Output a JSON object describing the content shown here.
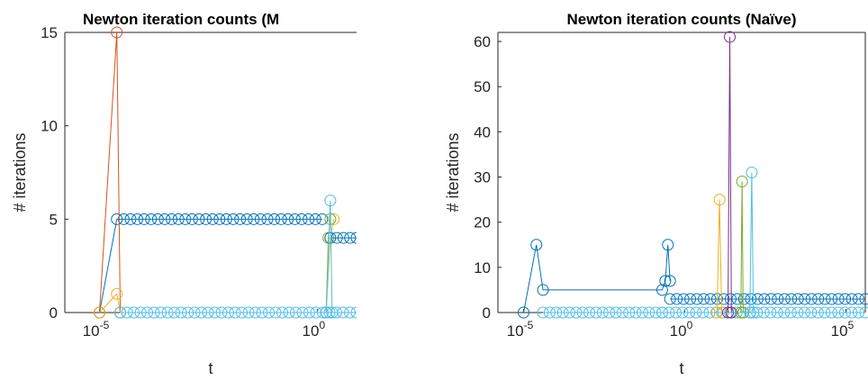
{
  "chart_data": [
    {
      "type": "line",
      "title": "Newton iteration counts (M",
      "xlabel": "t",
      "ylabel": "# iterations",
      "x_scale": "log",
      "xlim": [
        1.6e-06,
        8
      ],
      "ylim": [
        0,
        15
      ],
      "x_ticks": [
        {
          "value": 1e-05,
          "base": "10",
          "exp": "-5"
        },
        {
          "value": 1,
          "base": "10",
          "exp": "0"
        }
      ],
      "y_ticks": [
        {
          "value": 0,
          "label": "0"
        },
        {
          "value": 5,
          "label": "5"
        },
        {
          "value": 10,
          "label": "10"
        },
        {
          "value": 15,
          "label": "15"
        }
      ],
      "grid": false,
      "legend": "none",
      "series": [
        {
          "color": "#0072BD",
          "x": [
            1e-05,
            2.5e-05,
            1.3
          ],
          "y": [
            0,
            5,
            5
          ],
          "then_dense": {
            "x_end": 8,
            "y": 5
          },
          "marker": "circle"
        },
        {
          "color": "#D95319",
          "x": [
            1e-05,
            2.5e-05,
            3e-05
          ],
          "y": [
            0,
            15,
            0
          ],
          "marker": "circle"
        },
        {
          "color": "#EDB120",
          "x": [
            1e-05,
            2.5e-05,
            3e-05,
            1.6,
            2.0,
            2.4
          ],
          "y": [
            0,
            1,
            0,
            0,
            4,
            5
          ],
          "marker": "circle"
        },
        {
          "color": "#77AC30",
          "x": [
            1.6,
            1.8,
            2.0
          ],
          "y": [
            0,
            4,
            5
          ],
          "marker": "circle"
        },
        {
          "color": "#0072BD",
          "x": [
            2.0,
            8
          ],
          "y": [
            4,
            4
          ],
          "marker": "circle",
          "dense": true
        },
        {
          "color": "#4DBEEE",
          "x": [
            1.6,
            2.0,
            2.2
          ],
          "y": [
            0,
            6,
            0
          ],
          "marker": "circle"
        },
        {
          "color": "#4DBEEE",
          "x": [
            3e-05,
            8
          ],
          "y": [
            0,
            0
          ],
          "marker": "circle",
          "dense": true
        }
      ]
    },
    {
      "type": "line",
      "title": "Newton iteration counts (Naïve)",
      "xlabel": "t",
      "ylabel": "# iterations",
      "x_scale": "log",
      "xlim": [
        1.6e-06,
        400000
      ],
      "ylim": [
        0,
        62
      ],
      "x_ticks": [
        {
          "value": 1e-05,
          "base": "10",
          "exp": "-5"
        },
        {
          "value": 1,
          "base": "10",
          "exp": "0"
        },
        {
          "value": 100000,
          "base": "10",
          "exp": "5"
        }
      ],
      "y_ticks": [
        {
          "value": 0,
          "label": "0"
        },
        {
          "value": 10,
          "label": "10"
        },
        {
          "value": 20,
          "label": "20"
        },
        {
          "value": 30,
          "label": "30"
        },
        {
          "value": 40,
          "label": "40"
        },
        {
          "value": 50,
          "label": "50"
        },
        {
          "value": 60,
          "label": "60"
        }
      ],
      "grid": false,
      "legend": "none",
      "series": [
        {
          "color": "#0072BD",
          "x": [
            1e-05,
            2.5e-05,
            4e-05,
            0.2,
            0.25,
            0.3,
            0.35
          ],
          "y": [
            0,
            15,
            5,
            5,
            7,
            15,
            7
          ],
          "marker": "circle"
        },
        {
          "color": "#0072BD",
          "x": [
            0.35,
            400000
          ],
          "y": [
            3,
            3
          ],
          "marker": "circle",
          "dense": true
        },
        {
          "color": "#4DBEEE",
          "x": [
            4e-05,
            0.2
          ],
          "y": [
            0,
            0
          ],
          "marker": "circle",
          "dense": true
        },
        {
          "color": "#4DBEEE",
          "x": [
            0.2,
            400000
          ],
          "y": [
            0,
            0
          ],
          "marker": "circle",
          "dense": true
        },
        {
          "color": "#EDB120",
          "x": [
            10,
            12,
            14
          ],
          "y": [
            0,
            25,
            0
          ],
          "marker": "circle"
        },
        {
          "color": "#7E2F8E",
          "x": [
            22,
            25,
            28
          ],
          "y": [
            0,
            61,
            0
          ],
          "marker": "circle"
        },
        {
          "color": "#77AC30",
          "x": [
            55,
            60,
            65
          ],
          "y": [
            0,
            29,
            0
          ],
          "marker": "circle"
        },
        {
          "color": "#4DBEEE",
          "x": [
            105,
            120,
            135
          ],
          "y": [
            0,
            31,
            0
          ],
          "marker": "circle"
        }
      ]
    }
  ]
}
